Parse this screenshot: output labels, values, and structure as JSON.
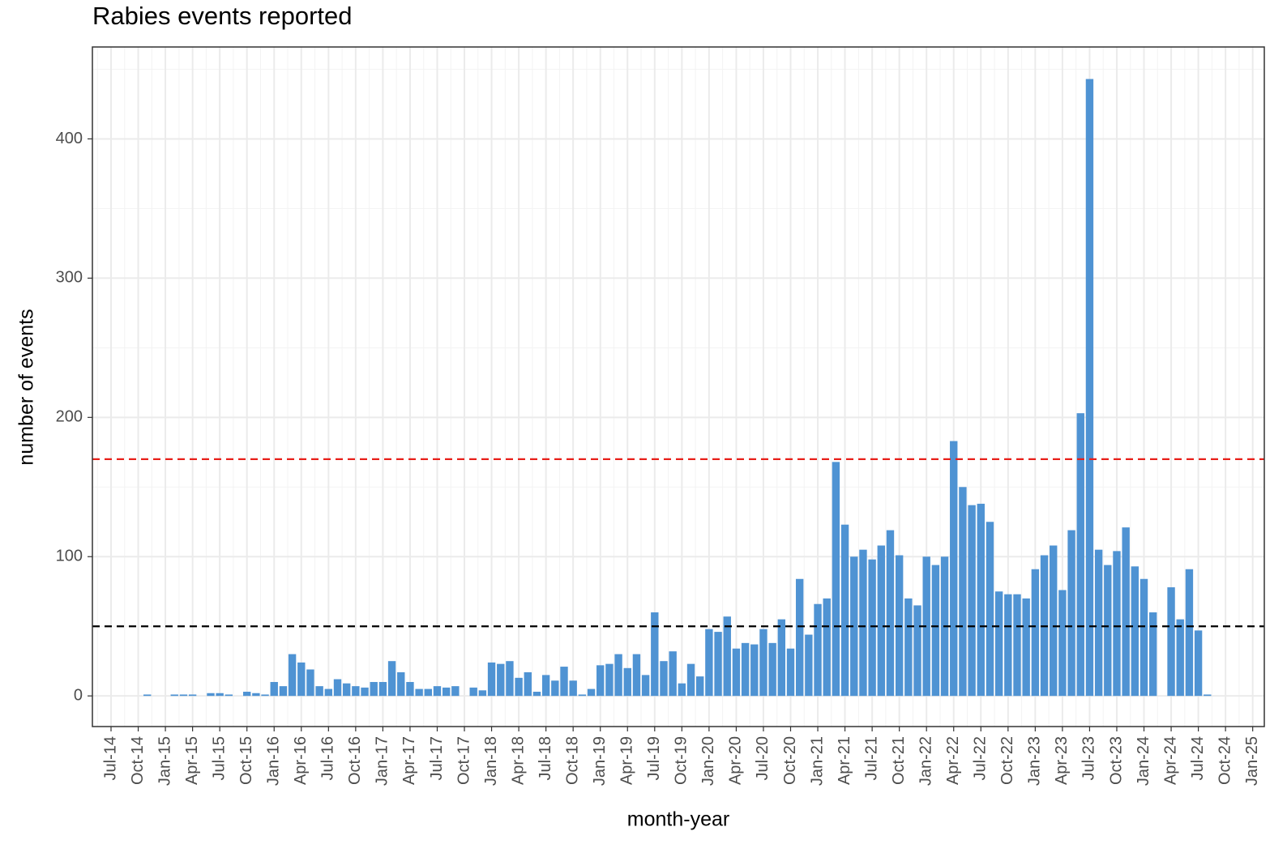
{
  "chart_data": {
    "type": "bar",
    "title": "Rabies events reported",
    "x_label": "month-year",
    "y_label": "number of events",
    "categories": [
      "Jul-14",
      null,
      null,
      "Oct-14",
      null,
      null,
      "Jan-15",
      null,
      null,
      "Apr-15",
      null,
      null,
      "Jul-15",
      null,
      null,
      "Oct-15",
      null,
      null,
      "Jan-16",
      null,
      null,
      "Apr-16",
      null,
      null,
      "Jul-16",
      null,
      null,
      "Oct-16",
      null,
      null,
      "Jan-17",
      null,
      null,
      "Apr-17",
      null,
      null,
      "Jul-17",
      null,
      null,
      "Oct-17",
      null,
      null,
      "Jan-18",
      null,
      null,
      "Apr-18",
      null,
      null,
      "Jul-18",
      null,
      null,
      "Oct-18",
      null,
      null,
      "Jan-19",
      null,
      null,
      "Apr-19",
      null,
      null,
      "Jul-19",
      null,
      null,
      "Oct-19",
      null,
      null,
      "Jan-20",
      null,
      null,
      "Apr-20",
      null,
      null,
      "Jul-20",
      null,
      null,
      "Oct-20",
      null,
      null,
      "Jan-21",
      null,
      null,
      "Apr-21",
      null,
      null,
      "Jul-21",
      null,
      null,
      "Oct-21",
      null,
      null,
      "Jan-22",
      null,
      null,
      "Apr-22",
      null,
      null,
      "Jul-22",
      null,
      null,
      "Oct-22",
      null,
      null,
      "Jan-23",
      null,
      null,
      "Apr-23",
      null,
      null,
      "Jul-23",
      null,
      null,
      "Oct-23",
      null,
      null,
      "Jan-24",
      null,
      null,
      "Apr-24",
      null,
      null,
      "Jul-24",
      null,
      null,
      "Oct-24",
      null,
      null,
      "Jan-25"
    ],
    "values": [
      null,
      null,
      null,
      null,
      1,
      0,
      0,
      1,
      1,
      1,
      0,
      2,
      2,
      1,
      0,
      3,
      2,
      1,
      10,
      7,
      30,
      24,
      19,
      7,
      5,
      12,
      9,
      7,
      6,
      10,
      10,
      25,
      17,
      10,
      5,
      5,
      7,
      6,
      7,
      0,
      6,
      4,
      24,
      23,
      25,
      13,
      17,
      3,
      15,
      11,
      21,
      11,
      1,
      5,
      22,
      23,
      30,
      20,
      30,
      15,
      60,
      25,
      32,
      9,
      23,
      14,
      48,
      46,
      57,
      34,
      38,
      37,
      48,
      38,
      55,
      34,
      84,
      44,
      66,
      70,
      168,
      123,
      100,
      105,
      98,
      108,
      119,
      101,
      70,
      65,
      100,
      94,
      100,
      183,
      150,
      137,
      138,
      125,
      75,
      73,
      73,
      70,
      91,
      101,
      108,
      76,
      119,
      203,
      443,
      105,
      94,
      104,
      121,
      93,
      84,
      60,
      0,
      78,
      55,
      91,
      47,
      1,
      null,
      null,
      null,
      null,
      null
    ],
    "color": "#4f93d3",
    "ylim": [
      -22,
      466
    ],
    "yticks": [
      0,
      100,
      200,
      300,
      400
    ],
    "grid": true,
    "hlines": [
      {
        "value": 170,
        "color": "#e8201a"
      },
      {
        "value": 50,
        "color": "#000000"
      }
    ]
  }
}
